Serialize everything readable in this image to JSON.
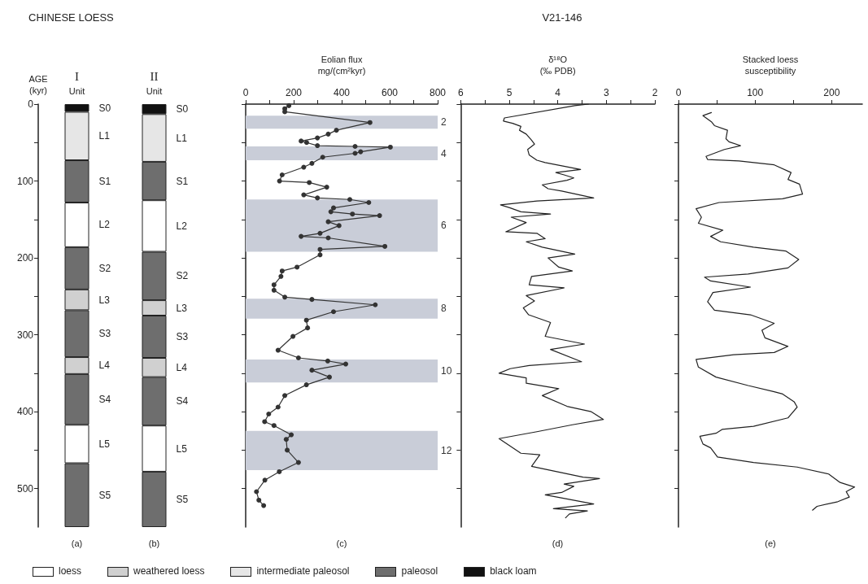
{
  "chart_data": [
    {
      "type": "bar",
      "title": "CHINESE LOESS",
      "categories": [
        "I",
        "II"
      ],
      "xlabel": "Unit",
      "ylabel": "AGE\n(kyr)",
      "stacked": true,
      "ylim": [
        550,
        0
      ],
      "yticks": [
        0,
        {
          "value": 50,
          "label": null
        },
        100,
        {
          "value": 150,
          "label": null
        },
        200,
        {
          "value": 250,
          "label": null
        },
        300,
        {
          "value": 350,
          "label": null
        },
        400,
        {
          "value": 450,
          "label": null
        },
        500
      ],
      "annotations": [
        "(a)",
        "(b)",
        "loess",
        "weathered loess",
        "intermediate paleosol",
        "paleosol",
        "black loam"
      ],
      "series": [
        {
          "name": "S0",
          "color": "#111111",
          "values": [
            10,
            13
          ]
        },
        {
          "name": "L1",
          "color": "#e6e6e6",
          "values": [
            63,
            62
          ]
        },
        {
          "name": "S1",
          "color": "#6e6e6e",
          "values": [
            55,
            50
          ]
        },
        {
          "name": "L2",
          "color": "#ffffff",
          "values": [
            58,
            67
          ]
        },
        {
          "name": "S2",
          "color": "#6e6e6e",
          "values": [
            55,
            63
          ]
        },
        {
          "name": "L3",
          "color": "#d0d0d0",
          "values": [
            27,
            20
          ]
        },
        {
          "name": "S3",
          "color": "#6e6e6e",
          "values": [
            61,
            55
          ]
        },
        {
          "name": "L4",
          "color": "#d0d0d0",
          "values": [
            22,
            25
          ]
        },
        {
          "name": "S4",
          "color": "#6e6e6e",
          "values": [
            66,
            63
          ]
        },
        {
          "name": "L5",
          "color": "#ffffff",
          "values": [
            50,
            60
          ]
        },
        {
          "name": "S5",
          "color": "#6e6e6e",
          "values": [
            83,
            72
          ]
        }
      ]
    },
    {
      "type": "line",
      "orientation": "horizontal",
      "xlabel": "Eolian flux\nmg/(cm²kyr)",
      "color": "#333333",
      "marker": "circle",
      "tick_labels": "x",
      "xlim": [
        0,
        800
      ],
      "xticks": [
        0,
        {
          "value": 100,
          "label": null
        },
        200,
        {
          "value": 300,
          "label": null
        },
        400,
        {
          "value": 500,
          "label": null
        },
        600,
        {
          "value": 700,
          "label": null
        },
        800
      ],
      "ylim": [
        550,
        0
      ],
      "yticks": [
        0,
        50,
        100,
        150,
        200,
        250,
        300,
        350,
        400,
        450,
        500
      ],
      "x": [
        2,
        6,
        10,
        24,
        34,
        39,
        44,
        48,
        50,
        54,
        55,
        56,
        62,
        64,
        69,
        77,
        82,
        92,
        100,
        102,
        108,
        118,
        122,
        124,
        128,
        135,
        140,
        143,
        145,
        153,
        158,
        168,
        172,
        174,
        185,
        189,
        196,
        212,
        217,
        224,
        235,
        242,
        251,
        254,
        261,
        270,
        281,
        291,
        302,
        320,
        330,
        334,
        338,
        346,
        355,
        365,
        379,
        394,
        403,
        413,
        418,
        430,
        436,
        450,
        466,
        478,
        489,
        504,
        515,
        522
      ],
      "values": [
        180,
        163,
        163,
        518,
        378,
        344,
        299,
        231,
        254,
        299,
        456,
        603,
        479,
        456,
        321,
        276,
        242,
        152,
        141,
        265,
        338,
        242,
        299,
        434,
        513,
        366,
        355,
        445,
        558,
        344,
        389,
        310,
        231,
        344,
        580,
        310,
        310,
        214,
        152,
        147,
        118,
        118,
        163,
        276,
        540,
        366,
        253,
        258,
        197,
        135,
        220,
        342,
        417,
        276,
        349,
        253,
        163,
        135,
        96,
        79,
        118,
        190,
        169,
        173,
        220,
        140,
        80,
        45,
        55,
        75
      ],
      "bands": [
        {
          "axis": "y",
          "from": 15,
          "to": 32,
          "label": "2",
          "color": "#c9cdd8"
        },
        {
          "axis": "y",
          "from": 55,
          "to": 73,
          "label": "4",
          "color": "#c9cdd8"
        },
        {
          "axis": "y",
          "from": 124,
          "to": 192,
          "label": "6",
          "color": "#c9cdd8"
        },
        {
          "axis": "y",
          "from": 253,
          "to": 279,
          "label": "8",
          "color": "#c9cdd8"
        },
        {
          "axis": "y",
          "from": 332,
          "to": 362,
          "label": "10",
          "color": "#c9cdd8"
        },
        {
          "axis": "y",
          "from": 425,
          "to": 476,
          "label": "12",
          "color": "#c9cdd8"
        }
      ],
      "annotations": [
        "(c)"
      ]
    },
    {
      "type": "line",
      "orientation": "horizontal",
      "title": "V21-146",
      "xlabel": "δ¹⁸O\n(‰ PDB)",
      "color": "#222222",
      "tick_labels": "x",
      "xlim": [
        6,
        2
      ],
      "xticks": [
        6,
        {
          "value": 5.5,
          "label": null
        },
        5,
        {
          "value": 4.5,
          "label": null
        },
        4,
        {
          "value": 3.5,
          "label": null
        },
        3,
        {
          "value": 2.5,
          "label": null
        },
        2
      ],
      "ylim": [
        550,
        0
      ],
      "yticks": [
        0,
        50,
        100,
        150,
        200,
        250,
        300,
        350,
        400,
        450,
        500
      ],
      "x": [
        0,
        2,
        18,
        22,
        25,
        29,
        34,
        39,
        47,
        52,
        59,
        66,
        73,
        76,
        85,
        89,
        92,
        96,
        99,
        105,
        110,
        113,
        122,
        126,
        131,
        135,
        140,
        143,
        147,
        154,
        166,
        168,
        175,
        179,
        186,
        195,
        200,
        212,
        217,
        224,
        235,
        239,
        249,
        256,
        265,
        274,
        284,
        302,
        312,
        319,
        335,
        340,
        344,
        350,
        356,
        363,
        370,
        379,
        393,
        400,
        410,
        417,
        426,
        435,
        454,
        456,
        471,
        485,
        487,
        494,
        497,
        505,
        508,
        520,
        526,
        529,
        533,
        538
      ],
      "values": [
        3.37,
        3.65,
        5.1,
        5.12,
        4.93,
        4.76,
        4.79,
        4.65,
        4.54,
        4.48,
        4.62,
        4.59,
        4.43,
        4.26,
        3.53,
        4.04,
        3.87,
        3.67,
        3.81,
        4.32,
        4.2,
        3.92,
        3.26,
        4.43,
        5.18,
        4.98,
        4.76,
        4.15,
        4.96,
        4.65,
        5.07,
        4.43,
        4.26,
        4.65,
        4.32,
        3.65,
        4.2,
        3.98,
        3.7,
        4.54,
        4.59,
        3.87,
        4.65,
        4.48,
        4.71,
        4.6,
        4.15,
        4.26,
        3.45,
        4.15,
        3.51,
        4.59,
        4.98,
        5.21,
        4.65,
        4.65,
        3.98,
        4.32,
        3.81,
        3.31,
        3.06,
        3.7,
        4.43,
        5.21,
        4.76,
        4.37,
        4.54,
        3.48,
        3.14,
        3.87,
        3.67,
        3.92,
        4.26,
        3.26,
        4.09,
        3.39,
        3.76,
        3.84
      ],
      "annotations": [
        "(d)"
      ]
    },
    {
      "type": "line",
      "orientation": "horizontal",
      "xlabel": "Stacked loess\nsusceptibility",
      "color": "#222222",
      "tick_labels": "x",
      "xlim": [
        0,
        240
      ],
      "xticks": [
        0,
        {
          "value": 50,
          "label": null
        },
        100,
        {
          "value": 150,
          "label": null
        },
        200
      ],
      "ylim": [
        550,
        0
      ],
      "yticks": [
        0,
        50,
        100,
        150,
        200,
        250,
        300,
        350,
        400,
        450,
        500
      ],
      "x": [
        11,
        15,
        23,
        28,
        34,
        45,
        49,
        54,
        59,
        68,
        72,
        74,
        79,
        89,
        98,
        104,
        117,
        123,
        128,
        136,
        147,
        155,
        164,
        172,
        179,
        186,
        191,
        202,
        213,
        221,
        225,
        230,
        238,
        245,
        257,
        268,
        274,
        285,
        294,
        304,
        315,
        323,
        326,
        332,
        342,
        355,
        366,
        374,
        377,
        387,
        394,
        408,
        419,
        423,
        428,
        432,
        442,
        447,
        459,
        466,
        472,
        481,
        492,
        498,
        504,
        511,
        517,
        523,
        528
      ],
      "values": [
        43,
        32,
        43,
        47,
        64,
        62,
        66,
        81,
        60,
        36,
        38,
        79,
        125,
        147,
        143,
        158,
        162,
        136,
        53,
        23,
        30,
        26,
        58,
        42,
        55,
        98,
        140,
        157,
        143,
        91,
        34,
        42,
        94,
        45,
        38,
        47,
        94,
        125,
        109,
        113,
        143,
        125,
        72,
        23,
        26,
        49,
        91,
        125,
        136,
        151,
        155,
        143,
        98,
        57,
        49,
        28,
        32,
        42,
        51,
        98,
        155,
        196,
        211,
        230,
        219,
        223,
        208,
        181,
        175
      ],
      "annotations": [
        "(e)"
      ]
    }
  ]
}
